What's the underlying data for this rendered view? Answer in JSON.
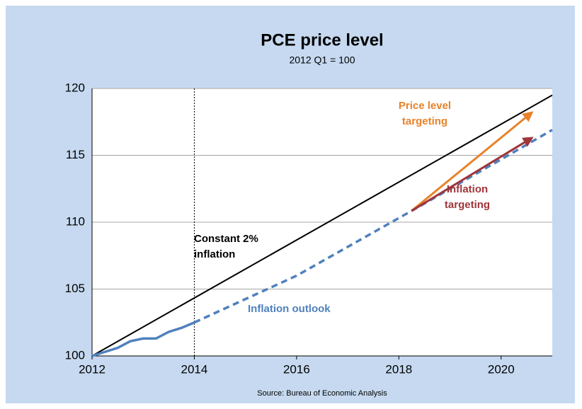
{
  "chart_data": {
    "type": "line",
    "title": "PCE price level",
    "subtitle": "2012 Q1 = 100",
    "source": "Source: Bureau of Economic Analysis",
    "xlim": [
      2012,
      2021
    ],
    "xticks": [
      2012,
      2014,
      2016,
      2018,
      2020
    ],
    "ylim": [
      100,
      120
    ],
    "yticks": [
      100,
      105,
      110,
      115,
      120
    ],
    "grid": true,
    "vline": 2014,
    "series": [
      {
        "color": "#000000",
        "style": "solid",
        "x": [
          2012,
          2021
        ],
        "values": [
          100,
          119.5
        ]
      },
      {
        "color": "#4f81bd",
        "style": "solid",
        "x": [
          2012,
          2012.5,
          2012.75,
          2013,
          2013.25,
          2013.5,
          2013.75,
          2014
        ],
        "values": [
          100,
          100.6,
          101.1,
          101.3,
          101.3,
          101.8,
          102.1,
          102.5
        ]
      },
      {
        "color": "#4f81bd",
        "style": "dashed",
        "x": [
          2014,
          2016,
          2018.25,
          2021
        ],
        "values": [
          102.5,
          106.0,
          110.85,
          116.9
        ]
      }
    ],
    "arrows": [
      {
        "color": "#e8822a",
        "x": [
          2018.25,
          2020.6
        ],
        "values": [
          110.85,
          118.2
        ]
      },
      {
        "color": "#a0353a",
        "x": [
          2018.25,
          2020.6
        ],
        "values": [
          110.85,
          116.3
        ]
      }
    ],
    "annotations": [
      {
        "lines": [
          "Constant 2%",
          "inflation"
        ],
        "color": "#000000"
      },
      {
        "lines": [
          "Inflation  outlook"
        ],
        "color": "#4f81bd"
      },
      {
        "lines": [
          "Price level",
          "targeting"
        ],
        "color": "#e8822a"
      },
      {
        "lines": [
          "Inflation",
          "targeting"
        ],
        "color": "#a0353a"
      }
    ]
  }
}
